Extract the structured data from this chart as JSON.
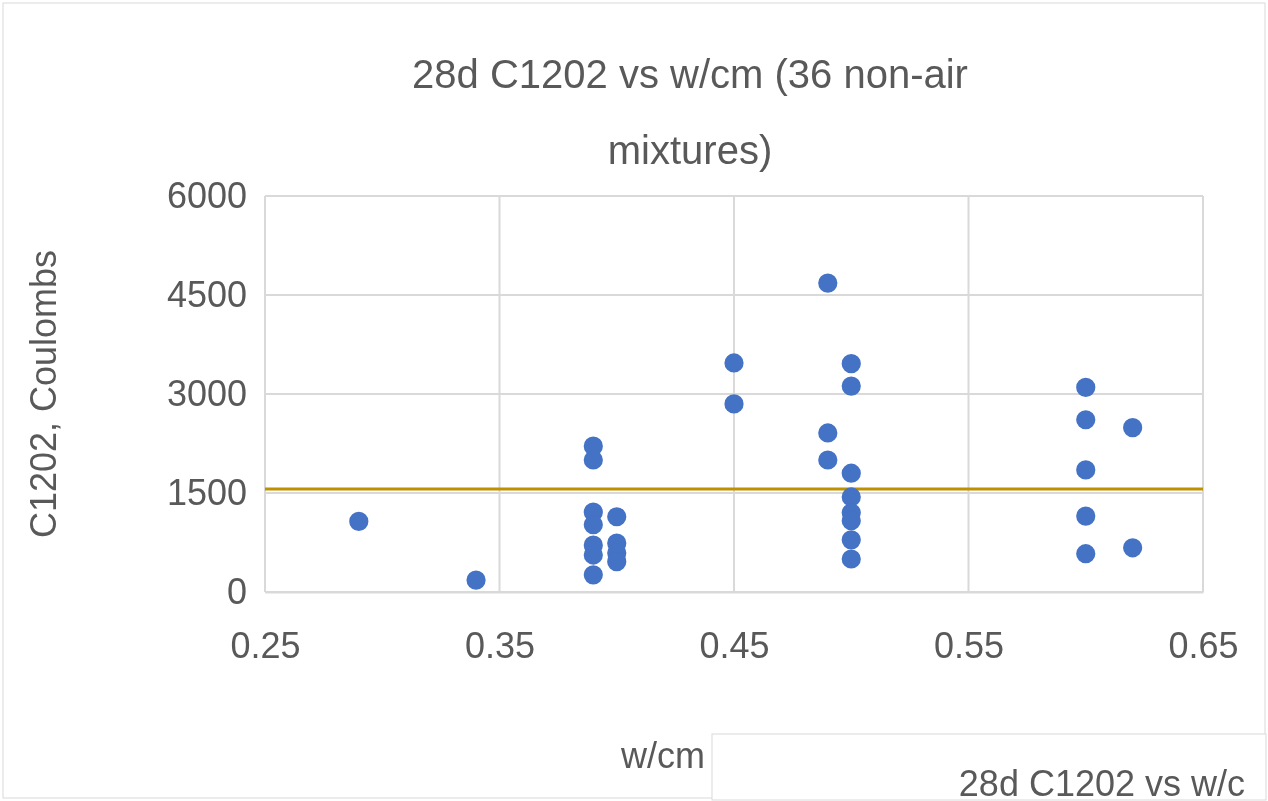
{
  "chart_data": {
    "type": "scatter",
    "title": "28d C1202 vs w/cm (36 non-air mixtures)",
    "xlabel": "w/cm",
    "ylabel": "C1202, Coulombs",
    "series": [
      {
        "color": "#4472c4",
        "x": [
          0.29,
          0.34,
          0.39,
          0.39,
          0.39,
          0.39,
          0.39,
          0.39,
          0.39,
          0.4,
          0.4,
          0.4,
          0.4,
          0.45,
          0.45,
          0.49,
          0.49,
          0.49,
          0.5,
          0.5,
          0.5,
          0.5,
          0.5,
          0.5,
          0.5,
          0.5,
          0.6,
          0.6,
          0.6,
          0.6,
          0.6,
          0.62,
          0.62
        ],
        "values": [
          1070,
          180,
          2210,
          2000,
          1210,
          1020,
          710,
          560,
          260,
          1140,
          740,
          590,
          460,
          3470,
          2850,
          4680,
          2410,
          2000,
          3460,
          3120,
          1800,
          1440,
          1200,
          1080,
          790,
          500,
          3100,
          2610,
          1850,
          1150,
          580,
          2490,
          670
        ]
      }
    ],
    "xlim": [
      0.25,
      0.65
    ],
    "xticks": [
      {
        "value": 0.25,
        "label": "0.25"
      },
      {
        "value": 0.35,
        "label": "0.35"
      },
      {
        "value": 0.45,
        "label": "0.45"
      },
      {
        "value": 0.55,
        "label": "0.55"
      },
      {
        "value": 0.65,
        "label": "0.65"
      }
    ],
    "ylim": [
      0,
      6000
    ],
    "yticks": [
      0,
      1500,
      3000,
      4500,
      6000
    ],
    "grid": true,
    "marker": "circle",
    "ref_lines": [
      {
        "axis": "y",
        "value": 1560,
        "color": "#bf9000"
      }
    ],
    "annotations": [
      "28d C1202 vs w/c"
    ]
  }
}
